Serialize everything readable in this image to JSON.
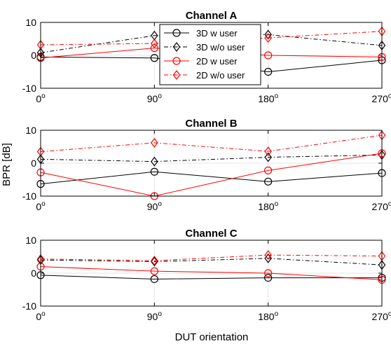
{
  "chart_data": [
    {
      "type": "line",
      "title": "Channel A",
      "x": [
        0,
        90,
        180,
        270
      ],
      "xticks": [
        {
          "base": "0",
          "sup": "o"
        },
        {
          "base": "90",
          "sup": "o"
        },
        {
          "base": "180",
          "sup": "o"
        },
        {
          "base": "270",
          "sup": "o"
        }
      ],
      "yticks": [
        "10",
        "0",
        "-10"
      ],
      "ylim": [
        -10,
        10
      ],
      "grid": true,
      "series": [
        {
          "name": "3D w user",
          "values": [
            -0.5,
            -0.8,
            -5.0,
            -1.5
          ]
        },
        {
          "name": "3D w/o user",
          "values": [
            0.8,
            6.0,
            6.3,
            3.0
          ]
        },
        {
          "name": "2D w user",
          "values": [
            -0.8,
            2.2,
            0.0,
            -0.5
          ]
        },
        {
          "name": "2D w/o user",
          "values": [
            3.2,
            3.6,
            5.3,
            7.3
          ]
        }
      ]
    },
    {
      "type": "line",
      "title": "Channel B",
      "x": [
        0,
        90,
        180,
        270
      ],
      "xticks": [
        {
          "base": "0",
          "sup": "o"
        },
        {
          "base": "90",
          "sup": "o"
        },
        {
          "base": "180",
          "sup": "o"
        },
        {
          "base": "270",
          "sup": "o"
        }
      ],
      "yticks": [
        "10",
        "0",
        "-10"
      ],
      "ylim": [
        -10,
        10
      ],
      "grid": true,
      "series": [
        {
          "name": "3D w user",
          "values": [
            -6.3,
            -2.6,
            -5.6,
            -3.0
          ]
        },
        {
          "name": "3D w/o user",
          "values": [
            1.2,
            0.5,
            1.8,
            2.5
          ]
        },
        {
          "name": "2D w user",
          "values": [
            -2.8,
            -10.0,
            -2.2,
            3.0
          ]
        },
        {
          "name": "2D w/o user",
          "values": [
            3.5,
            6.2,
            3.6,
            8.5
          ]
        }
      ]
    },
    {
      "type": "line",
      "title": "Channel C",
      "x": [
        0,
        90,
        180,
        270
      ],
      "xticks": [
        {
          "base": "0",
          "sup": "o"
        },
        {
          "base": "90",
          "sup": "o"
        },
        {
          "base": "180",
          "sup": "o"
        },
        {
          "base": "270",
          "sup": "o"
        }
      ],
      "yticks": [
        "10",
        "0",
        "-10"
      ],
      "ylim": [
        -10,
        10
      ],
      "grid": true,
      "series": [
        {
          "name": "3D w user",
          "values": [
            -0.6,
            -1.8,
            -1.4,
            -1.4
          ]
        },
        {
          "name": "3D w/o user",
          "values": [
            4.0,
            3.5,
            4.5,
            2.5
          ]
        },
        {
          "name": "2D w user",
          "values": [
            2.0,
            0.6,
            0.0,
            -2.0
          ]
        },
        {
          "name": "2D w/o user",
          "values": [
            4.3,
            3.8,
            5.5,
            5.2
          ]
        }
      ]
    }
  ],
  "ylabel": "BPR [dB]",
  "xlabel": "DUT orientation",
  "legend": {
    "placement": "inside Channel A, upper center-right",
    "entries": [
      {
        "label": "3D w user",
        "color": "#000000",
        "dash": "solid",
        "marker": "circle-icon"
      },
      {
        "label": "3D w/o user",
        "color": "#000000",
        "dash": "dashdot",
        "marker": "diamond-icon"
      },
      {
        "label": "2D w user",
        "color": "#ff0000",
        "dash": "solid",
        "marker": "circle-icon"
      },
      {
        "label": "2D w/o user",
        "color": "#ff0000",
        "dash": "dashdot",
        "marker": "diamond-icon"
      }
    ]
  },
  "colors": {
    "black": "#000000",
    "red": "#ff0000",
    "grid": "#e6e6e6"
  }
}
